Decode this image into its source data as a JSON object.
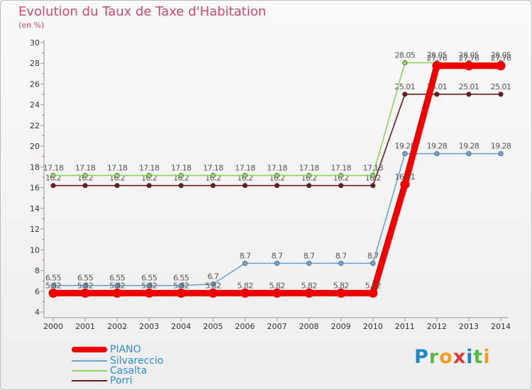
{
  "header": {
    "title": "Evolution du Taux de Taxe d'Habitation",
    "unit": "(en %)"
  },
  "logo": {
    "letters": [
      "P",
      "r",
      "o",
      "x",
      "i",
      "t",
      "i"
    ],
    "colors": [
      "#1e88c8",
      "#58b947",
      "#f39c1f",
      "#e23b36",
      "#1e88c8",
      "#58b947",
      "#f39c1f"
    ]
  },
  "chart_data": {
    "type": "line",
    "title": "Evolution du Taux de Taxe d'Habitation",
    "ylabel": "(en %)",
    "xlabel": "",
    "x": [
      "2000",
      "2001",
      "2002",
      "2003",
      "2004",
      "2005",
      "2006",
      "2007",
      "2008",
      "2009",
      "2010",
      "2011",
      "2012",
      "2013",
      "2014"
    ],
    "ylim": [
      4,
      30
    ],
    "yticks": [
      "4",
      "6",
      "8",
      "10",
      "12",
      "14",
      "16",
      "18",
      "20",
      "22",
      "24",
      "26",
      "28",
      "30"
    ],
    "grid": false,
    "legend_position": "bottom-left",
    "series": [
      {
        "name": "Porri",
        "color": "#6b1a1f",
        "values": [
          16.2,
          16.2,
          16.2,
          16.2,
          16.2,
          16.2,
          16.2,
          16.2,
          16.2,
          16.2,
          16.2,
          25.01,
          25.01,
          25.01,
          25.01
        ],
        "labels": [
          "16.2",
          "16.2",
          "16.2",
          "16.2",
          "16.2",
          "16.2",
          "16.2",
          "16.2",
          "16.2",
          "16.2",
          "16.2",
          "25.01",
          "25.01",
          "25.01",
          "25.01"
        ]
      },
      {
        "name": "Casalta",
        "color": "#8fd45c",
        "values": [
          17.18,
          17.18,
          17.18,
          17.18,
          17.18,
          17.18,
          17.18,
          17.18,
          17.18,
          17.18,
          17.18,
          28.05,
          28.05,
          28.05,
          28.05
        ],
        "labels": [
          "17.18",
          "17.18",
          "17.18",
          "17.18",
          "17.18",
          "17.18",
          "17.18",
          "17.18",
          "17.18",
          "17.18",
          "17.18",
          "28.05",
          "28.05",
          "28.05",
          "28.05"
        ]
      },
      {
        "name": "Silvareccio",
        "color": "#6ca5cf",
        "values": [
          6.55,
          6.55,
          6.55,
          6.55,
          6.55,
          6.7,
          8.7,
          8.7,
          8.7,
          8.7,
          8.7,
          19.28,
          19.28,
          19.28,
          19.28
        ],
        "labels": [
          "6.55",
          "6.55",
          "6.55",
          "6.55",
          "6.55",
          "6.7",
          "8.7",
          "8.7",
          "8.7",
          "8.7",
          "8.7",
          "19.28",
          "19.28",
          "19.28",
          "19.28"
        ]
      },
      {
        "name": "PIANO",
        "color": "#ee0000",
        "values": [
          5.82,
          5.82,
          5.82,
          5.82,
          5.82,
          5.82,
          5.82,
          5.82,
          5.82,
          5.82,
          5.82,
          16.31,
          27.76,
          27.76,
          27.76
        ],
        "labels": [
          "5.82",
          "5.82",
          "5.82",
          "5.82",
          "5.82",
          "5.82",
          "5.82",
          "5.82",
          "5.82",
          "5.82",
          "5.82",
          "16.31",
          "27.76",
          "27.76",
          "27.76"
        ]
      }
    ],
    "legend": [
      "PIANO",
      "Silvareccio",
      "Casalta",
      "Porri"
    ]
  }
}
